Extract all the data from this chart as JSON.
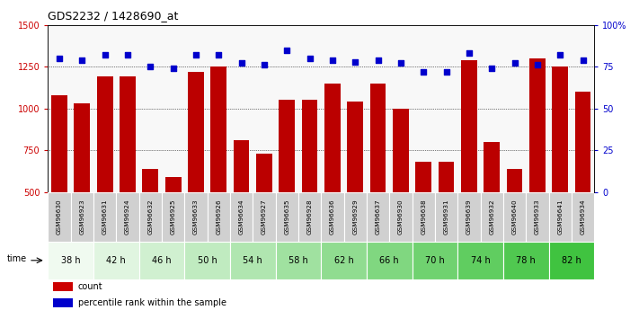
{
  "title": "GDS2232 / 1428690_at",
  "samples": [
    "GSM96630",
    "GSM96923",
    "GSM96631",
    "GSM96924",
    "GSM96632",
    "GSM96925",
    "GSM96633",
    "GSM96926",
    "GSM96634",
    "GSM96927",
    "GSM96635",
    "GSM96928",
    "GSM96636",
    "GSM96929",
    "GSM96637",
    "GSM96930",
    "GSM96638",
    "GSM96931",
    "GSM96639",
    "GSM96932",
    "GSM96640",
    "GSM96933",
    "GSM96641",
    "GSM96934"
  ],
  "count_values": [
    1080,
    1030,
    1190,
    1190,
    640,
    590,
    1220,
    1250,
    810,
    730,
    1050,
    1050,
    1150,
    1040,
    1150,
    1000,
    680,
    680,
    1290,
    800,
    640,
    1300,
    1250,
    1100
  ],
  "percentile_values": [
    80,
    79,
    82,
    82,
    75,
    74,
    82,
    82,
    77,
    76,
    85,
    80,
    79,
    78,
    79,
    77,
    72,
    72,
    83,
    74,
    77,
    76,
    82,
    79
  ],
  "ylim_left": [
    500,
    1500
  ],
  "ylim_right": [
    0,
    100
  ],
  "yticks_left": [
    500,
    750,
    1000,
    1250,
    1500
  ],
  "yticks_right": [
    0,
    25,
    50,
    75,
    100
  ],
  "bar_color": "#bb0000",
  "dot_color": "#0000cc",
  "plot_bg": "#f8f8f8",
  "label_bg": "#d0d0d0",
  "time_group_colors": [
    "#f0faf0",
    "#e0f5e0",
    "#d0f0d0",
    "#c0ebc0",
    "#b0e6b0",
    "#a0e1a0",
    "#90dc90",
    "#80d780",
    "#70d270",
    "#60cd60",
    "#50c850",
    "#40c340"
  ],
  "legend_count_color": "#cc0000",
  "legend_pct_color": "#0000cc",
  "time_labels": [
    "38 h",
    "42 h",
    "46 h",
    "50 h",
    "54 h",
    "58 h",
    "62 h",
    "66 h",
    "70 h",
    "74 h",
    "78 h",
    "82 h"
  ]
}
